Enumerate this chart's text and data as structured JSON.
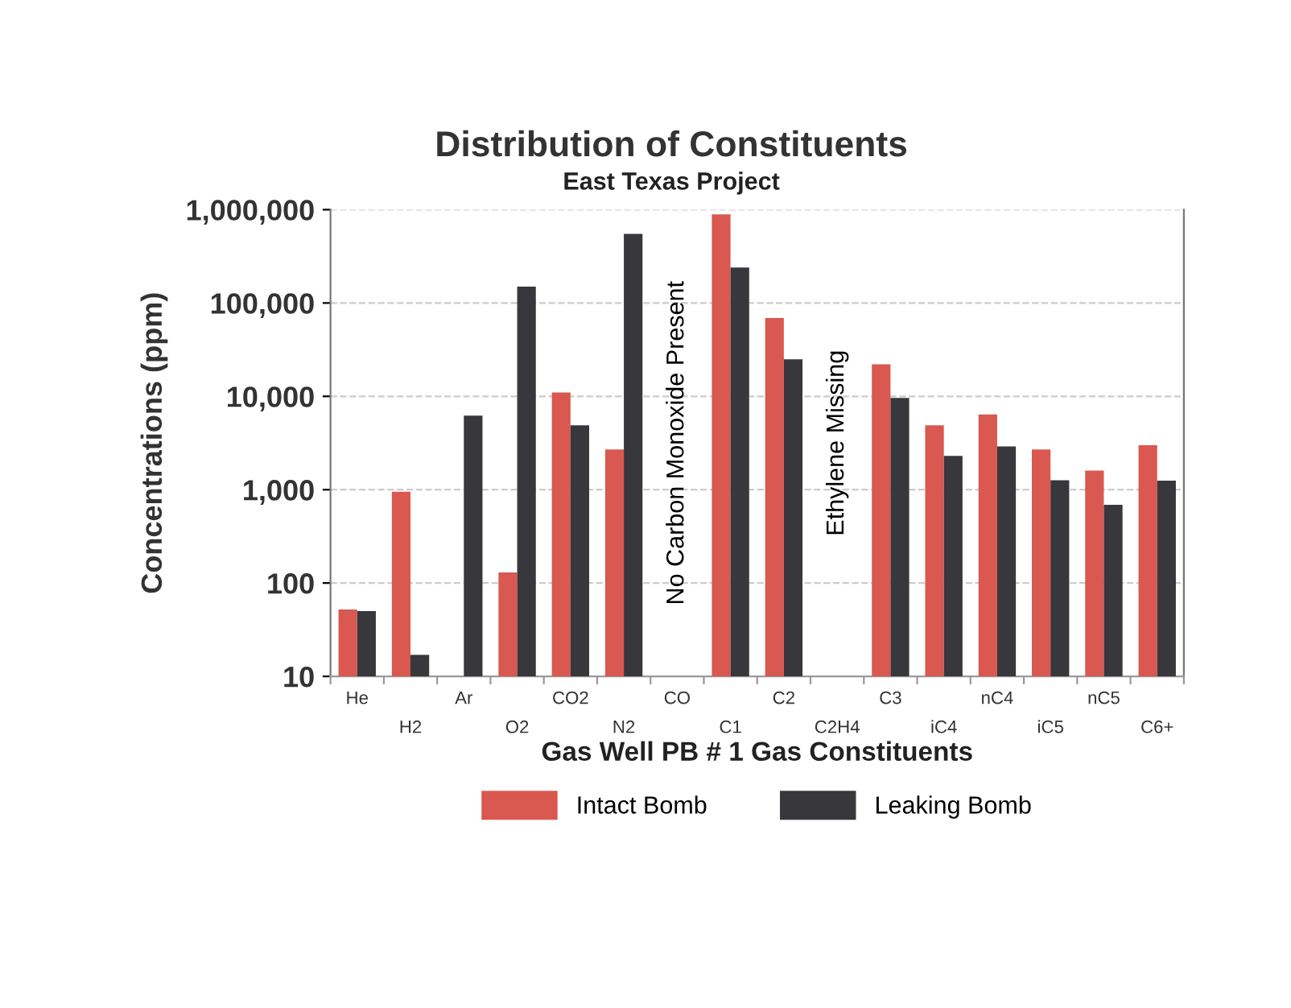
{
  "chart_data": {
    "type": "bar",
    "title": "Distribution of Constituents",
    "subtitle": "East Texas Project",
    "xlabel": "Gas Well PB # 1 Gas Constituents",
    "ylabel": "Concentrations (ppm)",
    "categories": [
      "He",
      "H2",
      "Ar",
      "O2",
      "CO2",
      "N2",
      "CO",
      "C1",
      "C2",
      "C2H4",
      "C3",
      "iC4",
      "nC4",
      "iC5",
      "nC5",
      "C6+"
    ],
    "series": [
      {
        "name": "Intact Bomb",
        "color": "#d9584f",
        "values": [
          52,
          950,
          null,
          130,
          11000,
          2700,
          null,
          890000,
          69000,
          null,
          22000,
          4900,
          6400,
          2700,
          1600,
          3000
        ]
      },
      {
        "name": "Leaking Bomb",
        "color": "#38373b",
        "values": [
          50,
          17,
          6200,
          150000,
          4900,
          550000,
          null,
          240000,
          25000,
          null,
          9600,
          2300,
          2900,
          1260,
          690,
          1250
        ]
      }
    ],
    "log": "y",
    "ylim": [
      10,
      1000000
    ],
    "yticks": [
      10,
      100,
      {
        "value": 1000,
        "label": "1,000"
      },
      {
        "value": 10000,
        "label": "10,000"
      },
      {
        "value": 100000,
        "label": "100,000"
      },
      {
        "value": 1000000,
        "label": "1,000,000"
      }
    ],
    "grid": "y",
    "legend": "bottom",
    "annotations": [
      "No Carbon Monoxide Present",
      "Ethylene Missing"
    ]
  }
}
